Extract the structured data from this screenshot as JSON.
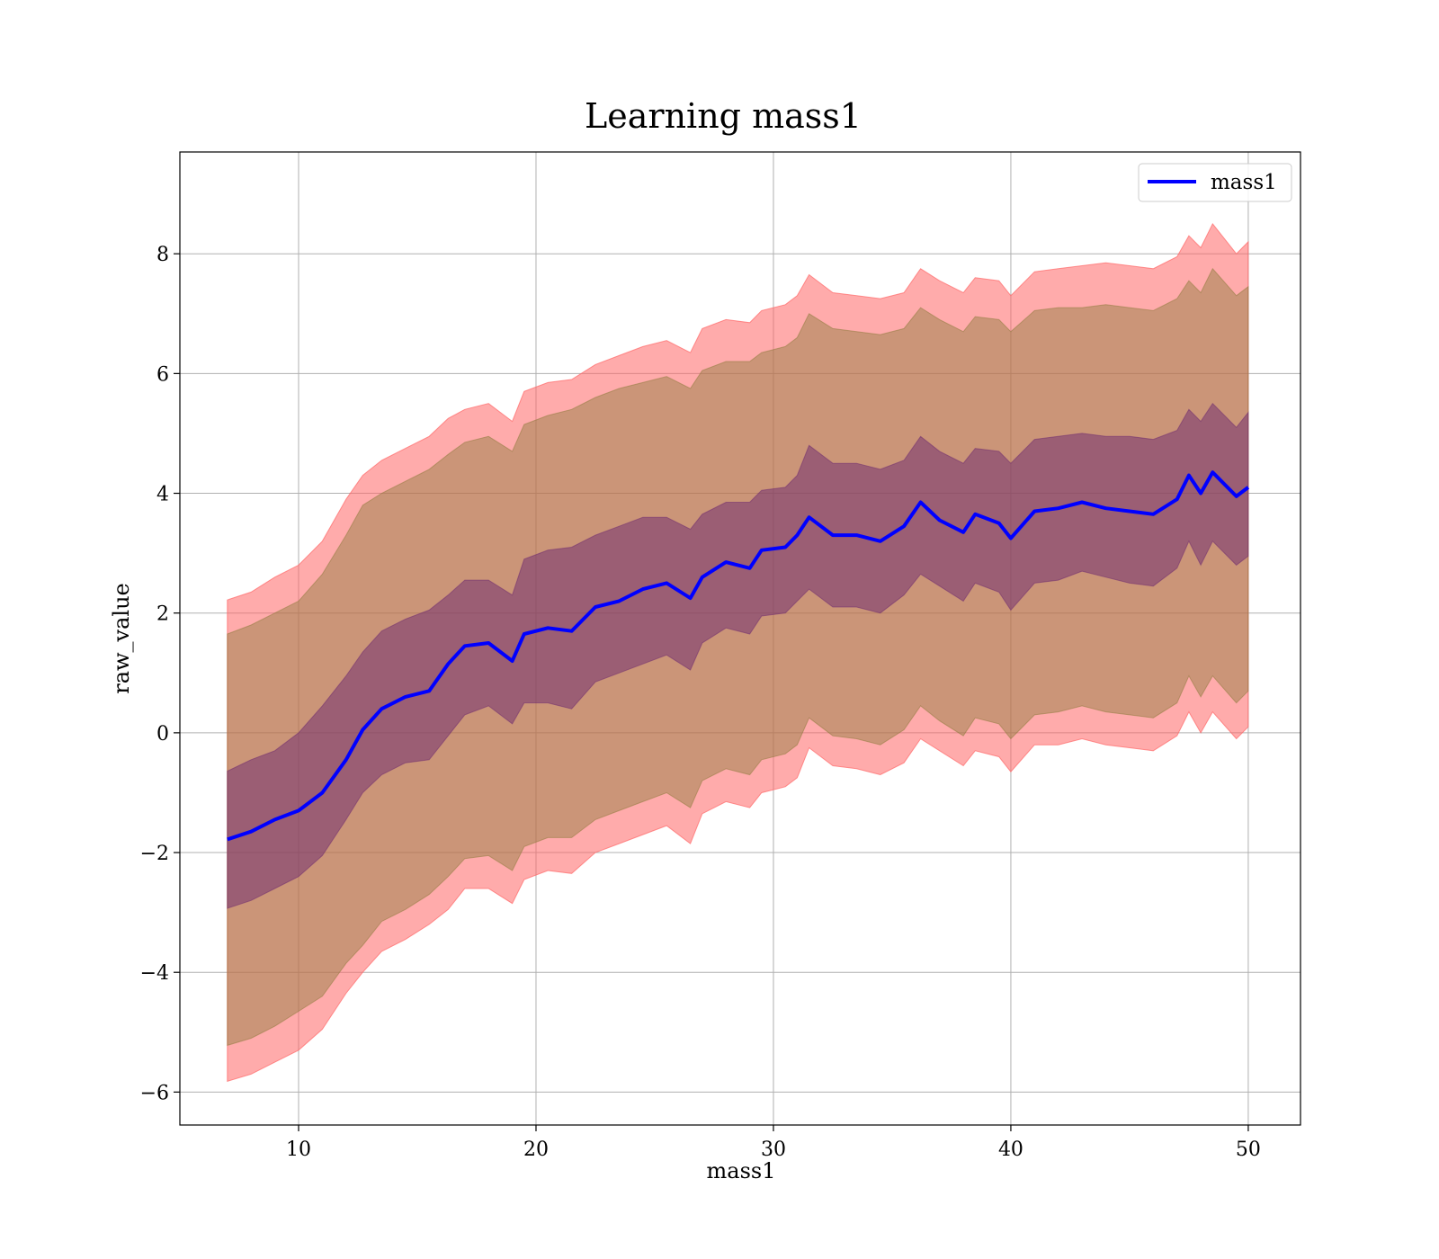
{
  "chart_data": {
    "type": "line",
    "title": "Learning mass1",
    "xlabel": "mass1",
    "ylabel": "raw_value",
    "xlim": [
      5.0,
      52.2
    ],
    "ylim": [
      -6.55,
      9.7
    ],
    "xticks": [
      10,
      20,
      30,
      40,
      50
    ],
    "yticks": [
      -6,
      -4,
      -2,
      0,
      2,
      4,
      6,
      8
    ],
    "ytick_labels": [
      "−6",
      "−4",
      "−2",
      "0",
      "2",
      "4",
      "6",
      "8"
    ],
    "grid": true,
    "legend": {
      "position": "top-right",
      "entries": [
        "mass1"
      ]
    },
    "colors": {
      "line": "#0000ff",
      "band_outer": "#ff6666",
      "band_middle": "#8c7a3a",
      "band_inner": "#6b2870",
      "grid": "#b0b0b0"
    },
    "series": [
      {
        "name": "mass1",
        "x": [
          7.0,
          8.0,
          9.0,
          10.0,
          11.0,
          12.0,
          12.7,
          13.5,
          14.5,
          15.5,
          16.3,
          17.0,
          18.0,
          19.0,
          19.5,
          20.5,
          21.5,
          22.5,
          23.5,
          24.5,
          25.5,
          26.5,
          27.0,
          28.0,
          29.0,
          29.5,
          30.5,
          31.0,
          31.5,
          32.5,
          33.5,
          34.5,
          35.5,
          36.2,
          37.0,
          38.0,
          38.5,
          39.5,
          40.0,
          41.0,
          42.0,
          43.0,
          44.0,
          45.0,
          46.0,
          47.0,
          47.5,
          48.0,
          48.5,
          49.5,
          50.0
        ],
        "y": [
          -1.78,
          -1.65,
          -1.45,
          -1.3,
          -1.0,
          -0.45,
          0.05,
          0.4,
          0.6,
          0.7,
          1.15,
          1.45,
          1.5,
          1.2,
          1.65,
          1.75,
          1.7,
          2.1,
          2.2,
          2.4,
          2.5,
          2.25,
          2.6,
          2.85,
          2.75,
          3.05,
          3.1,
          3.3,
          3.6,
          3.3,
          3.3,
          3.2,
          3.45,
          3.85,
          3.55,
          3.35,
          3.65,
          3.5,
          3.25,
          3.7,
          3.75,
          3.85,
          3.75,
          3.7,
          3.65,
          3.9,
          4.3,
          4.0,
          4.35,
          3.95,
          4.1
        ],
        "std_inner_upper": [
          -0.64,
          -0.45,
          -0.3,
          0.0,
          0.45,
          0.95,
          1.35,
          1.7,
          1.9,
          2.05,
          2.3,
          2.55,
          2.55,
          2.3,
          2.9,
          3.05,
          3.1,
          3.3,
          3.45,
          3.6,
          3.6,
          3.4,
          3.65,
          3.85,
          3.85,
          4.05,
          4.1,
          4.3,
          4.8,
          4.5,
          4.5,
          4.4,
          4.55,
          4.95,
          4.7,
          4.5,
          4.75,
          4.7,
          4.5,
          4.9,
          4.95,
          5.0,
          4.95,
          4.95,
          4.9,
          5.05,
          5.4,
          5.2,
          5.5,
          5.1,
          5.35
        ],
        "std_inner_lower": [
          -2.93,
          -2.8,
          -2.6,
          -2.4,
          -2.05,
          -1.45,
          -1.0,
          -0.7,
          -0.5,
          -0.45,
          -0.05,
          0.3,
          0.45,
          0.15,
          0.5,
          0.5,
          0.4,
          0.85,
          1.0,
          1.15,
          1.3,
          1.05,
          1.5,
          1.75,
          1.65,
          1.95,
          2.0,
          2.2,
          2.4,
          2.1,
          2.1,
          2.0,
          2.3,
          2.65,
          2.45,
          2.2,
          2.5,
          2.35,
          2.05,
          2.5,
          2.55,
          2.7,
          2.6,
          2.5,
          2.45,
          2.75,
          3.2,
          2.8,
          3.2,
          2.8,
          2.95
        ],
        "std_middle_upper": [
          1.65,
          1.8,
          2.0,
          2.2,
          2.65,
          3.3,
          3.8,
          4.0,
          4.2,
          4.4,
          4.65,
          4.85,
          4.95,
          4.7,
          5.15,
          5.3,
          5.4,
          5.6,
          5.75,
          5.85,
          5.95,
          5.75,
          6.05,
          6.2,
          6.2,
          6.35,
          6.45,
          6.6,
          7.0,
          6.75,
          6.7,
          6.65,
          6.75,
          7.1,
          6.9,
          6.7,
          6.95,
          6.9,
          6.7,
          7.05,
          7.1,
          7.1,
          7.15,
          7.1,
          7.05,
          7.25,
          7.55,
          7.35,
          7.75,
          7.3,
          7.45
        ],
        "std_middle_lower": [
          -5.22,
          -5.1,
          -4.9,
          -4.65,
          -4.4,
          -3.85,
          -3.55,
          -3.15,
          -2.95,
          -2.7,
          -2.4,
          -2.1,
          -2.05,
          -2.3,
          -1.9,
          -1.75,
          -1.75,
          -1.45,
          -1.3,
          -1.15,
          -1.0,
          -1.25,
          -0.8,
          -0.6,
          -0.7,
          -0.45,
          -0.35,
          -0.2,
          0.25,
          -0.05,
          -0.1,
          -0.2,
          0.05,
          0.45,
          0.2,
          -0.05,
          0.25,
          0.15,
          -0.1,
          0.3,
          0.35,
          0.45,
          0.35,
          0.3,
          0.25,
          0.5,
          0.95,
          0.6,
          0.95,
          0.5,
          0.7
        ],
        "std_outer_upper": [
          2.22,
          2.35,
          2.6,
          2.8,
          3.2,
          3.9,
          4.3,
          4.55,
          4.75,
          4.95,
          5.25,
          5.4,
          5.5,
          5.2,
          5.7,
          5.85,
          5.9,
          6.15,
          6.3,
          6.45,
          6.55,
          6.35,
          6.75,
          6.9,
          6.85,
          7.05,
          7.15,
          7.3,
          7.65,
          7.35,
          7.3,
          7.25,
          7.35,
          7.75,
          7.55,
          7.35,
          7.6,
          7.55,
          7.3,
          7.7,
          7.75,
          7.8,
          7.85,
          7.8,
          7.75,
          7.95,
          8.3,
          8.1,
          8.5,
          8.0,
          8.2
        ],
        "std_outer_lower": [
          -5.82,
          -5.7,
          -5.5,
          -5.3,
          -4.95,
          -4.35,
          -4.0,
          -3.65,
          -3.45,
          -3.2,
          -2.95,
          -2.6,
          -2.6,
          -2.85,
          -2.45,
          -2.3,
          -2.35,
          -2.0,
          -1.85,
          -1.7,
          -1.55,
          -1.85,
          -1.35,
          -1.15,
          -1.25,
          -1.0,
          -0.9,
          -0.75,
          -0.25,
          -0.55,
          -0.6,
          -0.7,
          -0.5,
          -0.1,
          -0.3,
          -0.55,
          -0.3,
          -0.4,
          -0.65,
          -0.2,
          -0.2,
          -0.1,
          -0.2,
          -0.25,
          -0.3,
          -0.05,
          0.35,
          0.0,
          0.35,
          -0.1,
          0.1
        ]
      }
    ]
  }
}
